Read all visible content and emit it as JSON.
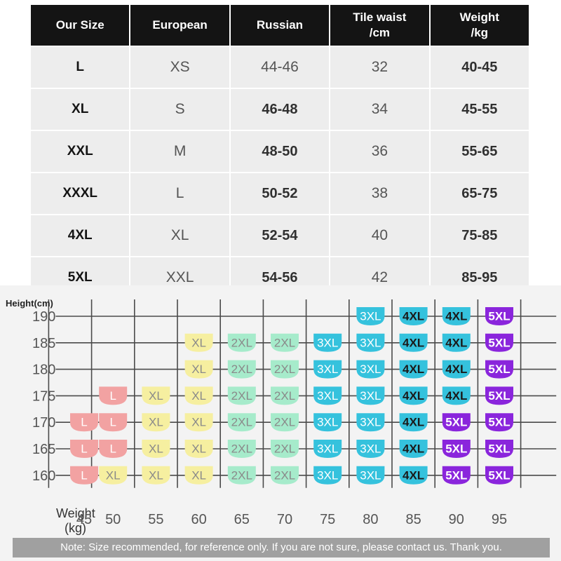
{
  "table": {
    "headers": [
      "Our Size",
      "European",
      "Russian",
      "Tile waist\n/cm",
      "Weight\n/kg"
    ],
    "rows": [
      [
        "L",
        "XS",
        "44-46",
        "32",
        "40-45"
      ],
      [
        "XL",
        "S",
        "46-48",
        "34",
        "45-55"
      ],
      [
        "XXL",
        "M",
        "48-50",
        "36",
        "55-65"
      ],
      [
        "XXXL",
        "L",
        "50-52",
        "38",
        "65-75"
      ],
      [
        "4XL",
        "XL",
        "52-54",
        "40",
        "75-85"
      ],
      [
        "5XL",
        "XXL",
        "54-56",
        "42",
        "85-95"
      ]
    ]
  },
  "chart": {
    "ylabel": "Height(cm)",
    "xlabel_line1": "Weight",
    "xlabel_line2": "(kg)",
    "heights": [
      190,
      185,
      180,
      175,
      170,
      165,
      160
    ],
    "weights": [
      45,
      50,
      55,
      60,
      65,
      70,
      75,
      80,
      85,
      90,
      95
    ],
    "grid": [
      [
        "",
        "",
        "",
        "",
        "",
        "",
        "",
        "3XL",
        "4XL",
        "4XL",
        "5XL"
      ],
      [
        "",
        "",
        "",
        "XL",
        "2XL",
        "2XL",
        "3XL",
        "3XL",
        "4XL",
        "4XL",
        "5XL"
      ],
      [
        "",
        "",
        "",
        "XL",
        "2XL",
        "2XL",
        "3XL",
        "3XL",
        "4XL",
        "4XL",
        "5XL"
      ],
      [
        "",
        "L",
        "XL",
        "XL",
        "2XL",
        "2XL",
        "3XL",
        "3XL",
        "4XL",
        "4XL",
        "5XL"
      ],
      [
        "L",
        "L",
        "XL",
        "XL",
        "2XL",
        "2XL",
        "3XL",
        "3XL",
        "4XL",
        "5XL",
        "5XL"
      ],
      [
        "L",
        "L",
        "XL",
        "XL",
        "2XL",
        "2XL",
        "3XL",
        "3XL",
        "4XL",
        "5XL",
        "5XL"
      ],
      [
        "L",
        "XL",
        "XL",
        "XL",
        "2XL",
        "2XL",
        "3XL",
        "3XL",
        "4XL",
        "5XL",
        "5XL"
      ]
    ],
    "size_colors": {
      "L": {
        "fill": "#f2a2a2",
        "text": "#ffffff"
      },
      "XL": {
        "fill": "#f6efa0",
        "text": "#8a8a8a"
      },
      "2XL": {
        "fill": "#a6ebcb",
        "text": "#8a8a8a"
      },
      "3XL": {
        "fill": "#35c2dd",
        "text": "#ffffff"
      },
      "4XL": {
        "fill": "#35c2dd",
        "text": "#1a1a1a"
      },
      "5XL": {
        "fill": "#8a25dc",
        "text": "#ffffff"
      }
    }
  },
  "note": "Note: Size recommended, for reference only. If you are not sure, please contact us. Thank you."
}
